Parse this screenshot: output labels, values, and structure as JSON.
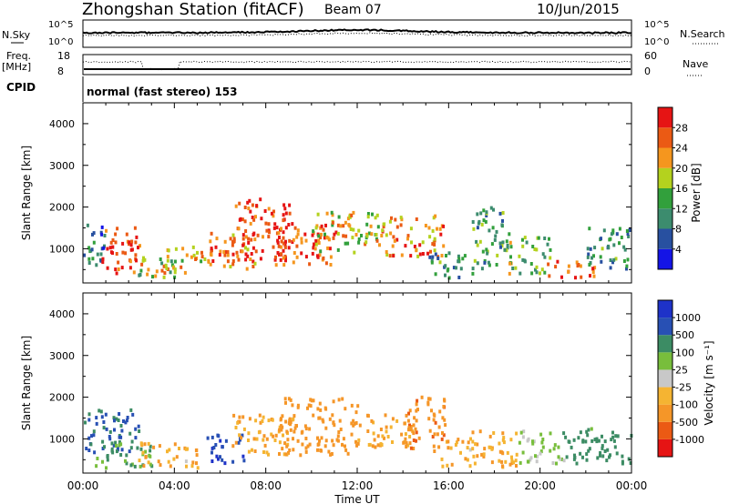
{
  "header": {
    "station": "Zhongshan Station (fitACF)",
    "beam": "Beam 07",
    "date": "10/Jun/2015",
    "cpid_label": "CPID",
    "cpid_value": "normal (fast stereo) 153"
  },
  "top_panels": {
    "nsky_label": "N.Sky",
    "nsearch_label": "N.Search",
    "freq_label_1": "Freq.",
    "freq_label_2": "[MHz]",
    "nave_label": "Nave",
    "nsky_ticks": [
      "10^5",
      "10^0"
    ],
    "nsearch_ticks": [
      "10^5",
      "10^0"
    ],
    "freq_ticks": [
      "18",
      "8"
    ],
    "nave_ticks": [
      "60",
      "0"
    ]
  },
  "colors": {
    "power": [
      "#1414e6",
      "#2850a0",
      "#3c8c6e",
      "#32a03c",
      "#b4d21e",
      "#f5961e",
      "#eb5a14",
      "#e61414"
    ],
    "velocity": [
      "#e61414",
      "#eb5a14",
      "#f59628",
      "#f5b432",
      "#c8c8c8",
      "#78be3c",
      "#3c8c64",
      "#2850b4",
      "#1e32c8"
    ]
  },
  "chart_data": [
    {
      "type": "heatmap",
      "panel": "power",
      "xlabel": "Time UT",
      "ylabel": "Slant Range [km]",
      "x_ticks": [
        "00:00",
        "04:00",
        "08:00",
        "12:00",
        "16:00",
        "20:00",
        "00:00"
      ],
      "y_ticks": [
        "1000",
        "2000",
        "3000",
        "4000"
      ],
      "xlim": [
        0,
        24
      ],
      "ylim": [
        180,
        4500
      ],
      "colorbar_label": "Power [dB]",
      "colorbar_ticks": [
        "4",
        "8",
        "12",
        "16",
        "20",
        "24",
        "28"
      ],
      "colorbar_range": [
        0,
        30
      ],
      "regions": [
        {
          "t": [
            0.0,
            0.9
          ],
          "r": [
            500,
            1700
          ],
          "value": 8
        },
        {
          "t": [
            0.8,
            2.6
          ],
          "r": [
            400,
            1500
          ],
          "value": 26
        },
        {
          "t": [
            2.0,
            4.0
          ],
          "r": [
            300,
            800
          ],
          "value": 14
        },
        {
          "t": [
            3.4,
            5.6
          ],
          "r": [
            400,
            1100
          ],
          "value": 20
        },
        {
          "t": [
            5.5,
            7.6
          ],
          "r": [
            500,
            1400
          ],
          "value": 24
        },
        {
          "t": [
            6.5,
            9.0
          ],
          "r": [
            700,
            2200
          ],
          "value": 26
        },
        {
          "t": [
            8.4,
            11.2
          ],
          "r": [
            600,
            1600
          ],
          "value": 25
        },
        {
          "t": [
            10.0,
            13.0
          ],
          "r": [
            900,
            1900
          ],
          "value": 18
        },
        {
          "t": [
            13.0,
            15.8
          ],
          "r": [
            800,
            1800
          ],
          "value": 22
        },
        {
          "t": [
            15.0,
            17.0
          ],
          "r": [
            300,
            900
          ],
          "value": 10
        },
        {
          "t": [
            17.0,
            18.6
          ],
          "r": [
            500,
            2000
          ],
          "value": 12
        },
        {
          "t": [
            18.4,
            20.4
          ],
          "r": [
            400,
            1300
          ],
          "value": 14
        },
        {
          "t": [
            20.0,
            22.4
          ],
          "r": [
            300,
            700
          ],
          "value": 25
        },
        {
          "t": [
            22.0,
            24.0
          ],
          "r": [
            500,
            1500
          ],
          "value": 10
        }
      ]
    },
    {
      "type": "heatmap",
      "panel": "velocity",
      "xlabel": "Time UT",
      "ylabel": "Slant Range [km]",
      "x_ticks": [
        "00:00",
        "04:00",
        "08:00",
        "12:00",
        "16:00",
        "20:00",
        "00:00"
      ],
      "y_ticks": [
        "1000",
        "2000",
        "3000",
        "4000"
      ],
      "xlim": [
        0,
        24
      ],
      "ylim": [
        180,
        4500
      ],
      "colorbar_label": "Velocity [m s⁻¹]",
      "colorbar_ticks": [
        "1000",
        "500",
        "100",
        "25",
        "-25",
        "-100",
        "-500",
        "-1000"
      ],
      "regions": [
        {
          "t": [
            0.0,
            2.4
          ],
          "r": [
            600,
            1700
          ],
          "value": 500
        },
        {
          "t": [
            0.5,
            3.0
          ],
          "r": [
            300,
            900
          ],
          "value": 100
        },
        {
          "t": [
            2.4,
            5.0
          ],
          "r": [
            300,
            900
          ],
          "value": -100
        },
        {
          "t": [
            5.4,
            7.0
          ],
          "r": [
            400,
            1100
          ],
          "value": 800
        },
        {
          "t": [
            6.5,
            9.2
          ],
          "r": [
            600,
            1600
          ],
          "value": -100
        },
        {
          "t": [
            8.6,
            12.0
          ],
          "r": [
            600,
            2000
          ],
          "value": -300
        },
        {
          "t": [
            12.0,
            14.5
          ],
          "r": [
            800,
            1600
          ],
          "value": -100
        },
        {
          "t": [
            14.0,
            15.8
          ],
          "r": [
            700,
            2000
          ],
          "value": -400
        },
        {
          "t": [
            15.6,
            17.2
          ],
          "r": [
            300,
            1000
          ],
          "value": -100
        },
        {
          "t": [
            17.0,
            19.0
          ],
          "r": [
            300,
            1200
          ],
          "value": -100
        },
        {
          "t": [
            19.0,
            21.0
          ],
          "r": [
            400,
            1200
          ],
          "value": 50
        },
        {
          "t": [
            21.0,
            22.5
          ],
          "r": [
            400,
            1300
          ],
          "value": 200
        },
        {
          "t": [
            22.5,
            24.0
          ],
          "r": [
            400,
            1200
          ],
          "value": 300
        }
      ]
    }
  ]
}
